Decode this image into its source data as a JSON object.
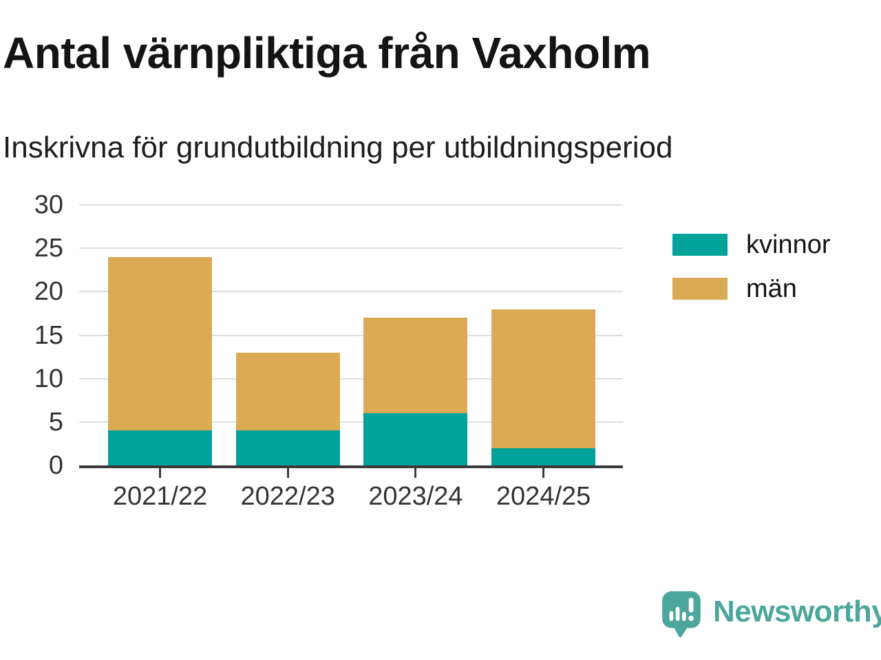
{
  "chart_data": {
    "type": "bar",
    "stacked": true,
    "title": "Antal värnpliktiga från Vaxholm",
    "subtitle": "Inskrivna för grundutbildning per utbildningsperiod",
    "categories": [
      "2021/22",
      "2022/23",
      "2023/24",
      "2024/25"
    ],
    "series": [
      {
        "name": "kvinnor",
        "color": "#00a29a",
        "values": [
          4,
          4,
          6,
          2
        ]
      },
      {
        "name": "män",
        "color": "#dbaa55",
        "values": [
          20,
          9,
          11,
          16
        ]
      }
    ],
    "totals": [
      24,
      13,
      17,
      18
    ],
    "xlabel": "",
    "ylabel": "",
    "ylim": [
      0,
      30
    ],
    "yticks": [
      0,
      5,
      10,
      15,
      20,
      25,
      30
    ],
    "grid": true,
    "legend_position": "right"
  },
  "colors": {
    "kvinnor": "#00a29a",
    "man": "#dbaa55",
    "gridline": "#dcdcdc",
    "axis": "#3a3a3a",
    "tick_text": "#333333",
    "title_text": "#141414",
    "brand_teal": "#4ba69b"
  },
  "branding": {
    "logo_text": "Newsworthy",
    "logo_icon": "newsworthy-bubble-barchart-icon"
  }
}
